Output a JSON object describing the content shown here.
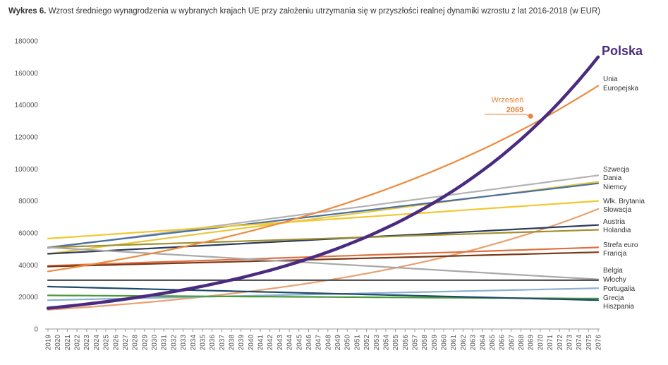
{
  "title_prefix": "Wykres 6.",
  "title_text": "Wzrost średniego wynagrodzenia w wybranych krajach UE przy założeniu utrzymania się w przyszłości realnej dynamiki wzrostu z lat 2016-2018 (w EUR)",
  "chart_data": {
    "type": "line",
    "title": "Wykres 6. Wzrost średniego wynagrodzenia w wybranych krajach UE przy założeniu utrzymania się w przyszłości realnej dynamiki wzrostu z lat 2016-2018 (w EUR)",
    "xlabel": "",
    "ylabel": "",
    "x_start": 2019,
    "x_end": 2076,
    "ylim": [
      0,
      180000
    ],
    "yticks": [
      0,
      20000,
      40000,
      60000,
      80000,
      100000,
      120000,
      140000,
      160000,
      180000
    ],
    "grid": false,
    "annotation": {
      "line1": "Wrzesień",
      "line2": "2069",
      "x": 2069,
      "y": 133000
    },
    "series": [
      {
        "name": "Szwecja",
        "color": "#b3b3b3",
        "start": 50500,
        "end": 96000,
        "growth": "linear"
      },
      {
        "name": "Dania",
        "color": "#e8c840",
        "start": 47000,
        "end": 92000,
        "growth": "linear"
      },
      {
        "name": "Niemcy",
        "color": "#4a6fa5",
        "start": 51000,
        "end": 91000,
        "growth": "linear"
      },
      {
        "name": "Wlk. Brytania",
        "color": "#f0c830",
        "start": 56500,
        "end": 80000,
        "growth": "linear"
      },
      {
        "name": "Słowacja",
        "color": "#e8a070",
        "start": 12000,
        "end": 75000,
        "growth": "exponential"
      },
      {
        "name": "Austria",
        "color": "#2b3a5c",
        "start": 47000,
        "end": 65000,
        "growth": "linear"
      },
      {
        "name": "Holandia",
        "color": "#a09030",
        "start": 51000,
        "end": 62000,
        "growth": "linear"
      },
      {
        "name": "Strefa euro",
        "color": "#e07040",
        "start": 39500,
        "end": 51000,
        "growth": "linear"
      },
      {
        "name": "Francja",
        "color": "#7a3a1a",
        "start": 39000,
        "end": 48000,
        "growth": "linear"
      },
      {
        "name": "Belgia",
        "color": "#a8a8a8",
        "start": 51000,
        "end": 31000,
        "growth": "linear"
      },
      {
        "name": "Włochy",
        "color": "#555555",
        "start": 30500,
        "end": 30500,
        "growth": "linear"
      },
      {
        "name": "Portugalia",
        "color": "#8ab0d0",
        "start": 18000,
        "end": 25500,
        "growth": "linear"
      },
      {
        "name": "Grecja",
        "color": "#4a9a3a",
        "start": 21000,
        "end": 19000,
        "growth": "linear"
      },
      {
        "name": "Hiszpania",
        "color": "#1e4a6a",
        "start": 26500,
        "end": 18000,
        "growth": "linear"
      },
      {
        "name": "Unia Europejska",
        "label_lines": [
          "Unia",
          "Europejska"
        ],
        "color": "#ee8a3c",
        "start": 36000,
        "end": 152000,
        "growth": "exponential"
      },
      {
        "name": "Polska",
        "color": "#4a2b80",
        "start": 13000,
        "end": 170000,
        "growth": "exponential"
      }
    ]
  }
}
